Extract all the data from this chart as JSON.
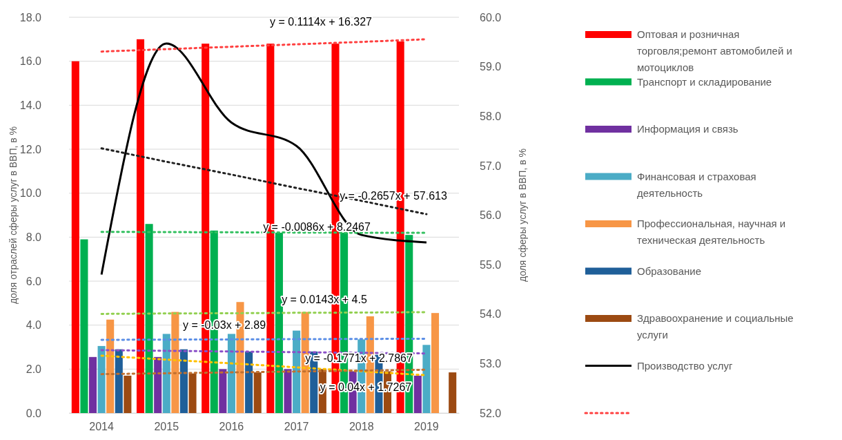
{
  "chart_data": {
    "type": "bar",
    "categories": [
      "2014",
      "2015",
      "2016",
      "2017",
      "2018",
      "2019"
    ],
    "ylabel": "доля отраслей сферы услуг в ВВП, в %",
    "y2label": "доля сферы услуг в ВВП, в %",
    "ylim": [
      0,
      18
    ],
    "yticks": [
      {
        "value": 0,
        "label": "0.0"
      },
      {
        "value": 2,
        "label": "2.0"
      },
      {
        "value": 4,
        "label": "4.0"
      },
      {
        "value": 6,
        "label": "6.0"
      },
      {
        "value": 8,
        "label": "8.0"
      },
      {
        "value": 10,
        "label": "10.0"
      },
      {
        "value": 12,
        "label": "12.0"
      },
      {
        "value": 14,
        "label": "14.0"
      },
      {
        "value": 16,
        "label": "16.0"
      },
      {
        "value": 18,
        "label": "18.0"
      }
    ],
    "y2lim": [
      52,
      60
    ],
    "y2ticks": [
      {
        "value": 52,
        "label": "52.0"
      },
      {
        "value": 53,
        "label": "53.0"
      },
      {
        "value": 54,
        "label": "54.0"
      },
      {
        "value": 55,
        "label": "55.0"
      },
      {
        "value": 56,
        "label": "56.0"
      },
      {
        "value": 57,
        "label": "57.0"
      },
      {
        "value": 58,
        "label": "58.0"
      },
      {
        "value": 59,
        "label": "59.0"
      },
      {
        "value": 60,
        "label": "60.0"
      }
    ],
    "grid": "y",
    "legend": "right",
    "series": [
      {
        "name": "Оптовая и розничная торговля;ремонт автомобилей и мотоциклов",
        "color": "#ff0000",
        "values": [
          16.0,
          17.0,
          16.8,
          16.8,
          16.8,
          16.9
        ]
      },
      {
        "name": "Транспорт и складирование",
        "color": "#00b050",
        "values": [
          7.9,
          8.6,
          8.3,
          8.2,
          8.2,
          8.1
        ]
      },
      {
        "name": "Информация и связь",
        "color": "#7030a0",
        "values": [
          2.55,
          2.55,
          2.0,
          2.0,
          1.9,
          1.7
        ]
      },
      {
        "name": "Финансовая и страховая деятельность",
        "color": "#4bacc6",
        "values": [
          3.05,
          3.6,
          3.6,
          3.75,
          3.35,
          3.1
        ]
      },
      {
        "name": "Профессиональная, научная и техническая деятельность",
        "color": "#f79646",
        "values": [
          4.25,
          4.6,
          5.05,
          4.6,
          4.4,
          4.55
        ]
      },
      {
        "name": "Образование",
        "color": "#1f5f99",
        "values": [
          2.9,
          2.9,
          2.8,
          2.8,
          2.65,
          null
        ]
      },
      {
        "name": "Здравоохранение и социальные услуги",
        "color": "#9c4a12",
        "values": [
          1.7,
          1.8,
          1.85,
          2.0,
          1.9,
          1.85
        ]
      },
      {
        "name": "Производство услуг",
        "type": "line",
        "axis": "y2",
        "color": "#000000",
        "values": [
          54.8,
          59.47,
          57.87,
          57.4,
          55.6,
          55.45
        ]
      },
      {
        "type": "line",
        "line_style": "dotted",
        "color": "#ff4040",
        "values": [
          16.44,
          16.55,
          16.66,
          16.77,
          16.88,
          17.0
        ]
      },
      {
        "type": "line",
        "line_style": "dotted",
        "axis": "y2",
        "color": "#222222",
        "values": [
          57.35,
          57.08,
          56.82,
          56.55,
          56.29,
          56.02
        ]
      },
      {
        "type": "line",
        "line_style": "dotted",
        "color": "#33c060",
        "values": [
          8.24,
          8.23,
          8.22,
          8.21,
          8.2,
          8.2
        ]
      },
      {
        "type": "line",
        "line_style": "dotted",
        "color": "#92d050",
        "values": [
          4.51,
          4.53,
          4.54,
          4.56,
          4.57,
          4.59
        ]
      },
      {
        "type": "line",
        "line_style": "dotted",
        "color": "#5b8ee6",
        "values": [
          3.33,
          3.34,
          3.35,
          3.36,
          3.37,
          3.38
        ]
      },
      {
        "type": "line",
        "line_style": "dotted",
        "color": "#8a50c8",
        "values": [
          2.86,
          2.83,
          2.8,
          2.77,
          2.74,
          2.71
        ]
      },
      {
        "type": "line",
        "line_style": "dotted",
        "color": "#ffc000",
        "values": [
          2.61,
          2.43,
          2.26,
          2.08,
          1.9,
          1.72
        ]
      },
      {
        "type": "line",
        "line_style": "dotted",
        "color": "#c07030",
        "values": [
          1.77,
          1.81,
          1.85,
          1.89,
          1.93,
          1.97
        ]
      }
    ],
    "annotations": [
      "y = 0.1114x + 16.327",
      "y = -0.2657x + 57.613",
      "y = -0.0086x + 8.2467",
      "y = 0.0143x + 4.5",
      "y = -0.03x + 2.89",
      "y = -0.1771x + 2.7867",
      "y = 0.04x + 1.7267"
    ]
  }
}
